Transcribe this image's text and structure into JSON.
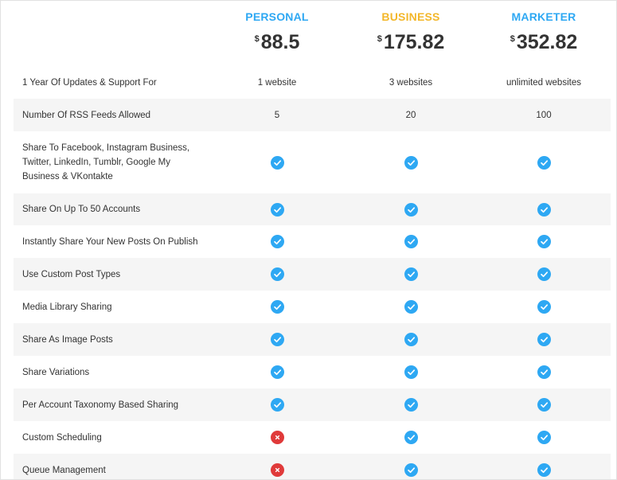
{
  "colors": {
    "personal": "#2ea8f3",
    "business": "#f3b72a",
    "marketer": "#2ea8f3",
    "check": "#2ea8f3",
    "cross": "#e03a3a",
    "row_shade": "#f5f5f5"
  },
  "plans": [
    {
      "name": "PERSONAL",
      "currency": "$",
      "price": "88.5"
    },
    {
      "name": "BUSINESS",
      "currency": "$",
      "price": "175.82"
    },
    {
      "name": "MARKETER",
      "currency": "$",
      "price": "352.82"
    }
  ],
  "rows": [
    {
      "feature": "1 Year Of Updates & Support For",
      "values": [
        "1 website",
        "3 websites",
        "unlimited websites"
      ]
    },
    {
      "feature": "Number Of RSS Feeds Allowed",
      "values": [
        "5",
        "20",
        "100"
      ]
    },
    {
      "feature": "Share To Facebook, Instagram Business, Twitter, LinkedIn, Tumblr, Google My Business & VKontakte",
      "values": [
        "check-icon",
        "check-icon",
        "check-icon"
      ]
    },
    {
      "feature": "Share On Up To 50 Accounts",
      "values": [
        "check-icon",
        "check-icon",
        "check-icon"
      ]
    },
    {
      "feature": "Instantly Share Your New Posts On Publish",
      "values": [
        "check-icon",
        "check-icon",
        "check-icon"
      ]
    },
    {
      "feature": "Use Custom Post Types",
      "values": [
        "check-icon",
        "check-icon",
        "check-icon"
      ]
    },
    {
      "feature": "Media Library Sharing",
      "values": [
        "check-icon",
        "check-icon",
        "check-icon"
      ]
    },
    {
      "feature": "Share As Image Posts",
      "values": [
        "check-icon",
        "check-icon",
        "check-icon"
      ]
    },
    {
      "feature": "Share Variations",
      "values": [
        "check-icon",
        "check-icon",
        "check-icon"
      ]
    },
    {
      "feature": "Per Account Taxonomy Based Sharing",
      "values": [
        "check-icon",
        "check-icon",
        "check-icon"
      ]
    },
    {
      "feature": "Custom Scheduling",
      "values": [
        "cross-icon",
        "check-icon",
        "check-icon"
      ]
    },
    {
      "feature": "Queue Management",
      "values": [
        "cross-icon",
        "check-icon",
        "check-icon"
      ]
    }
  ]
}
